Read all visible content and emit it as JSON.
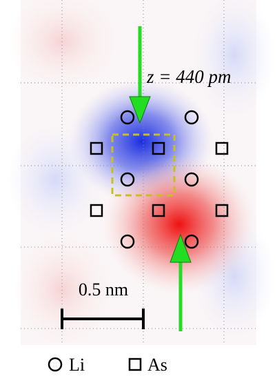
{
  "annotation": "z = 440 pm",
  "scale_bar": "0.5 nm",
  "legend": [
    "Li",
    "As"
  ]
}
